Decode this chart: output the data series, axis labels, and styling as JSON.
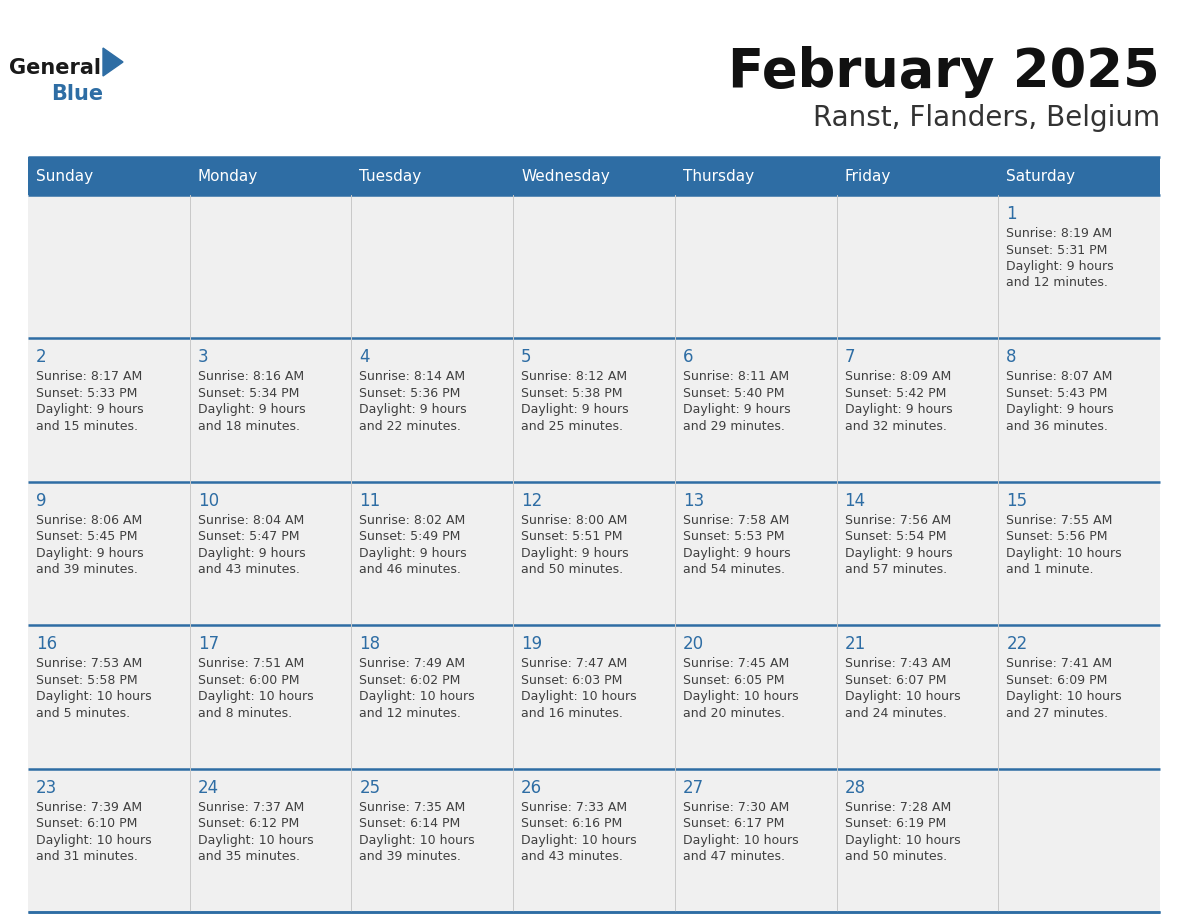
{
  "title": "February 2025",
  "subtitle": "Ranst, Flanders, Belgium",
  "header_bg": "#2E6DA4",
  "header_text": "#FFFFFF",
  "cell_bg": "#F0F0F0",
  "day_number_color": "#2E6DA4",
  "text_color": "#404040",
  "line_color": "#2E6DA4",
  "days_of_week": [
    "Sunday",
    "Monday",
    "Tuesday",
    "Wednesday",
    "Thursday",
    "Friday",
    "Saturday"
  ],
  "logo_general_color": "#1a1a1a",
  "logo_blue_color": "#2E6DA4",
  "logo_triangle_color": "#2E6DA4",
  "weeks": [
    [
      {
        "day": null,
        "sunrise": null,
        "sunset": null,
        "daylight_line1": null,
        "daylight_line2": null
      },
      {
        "day": null,
        "sunrise": null,
        "sunset": null,
        "daylight_line1": null,
        "daylight_line2": null
      },
      {
        "day": null,
        "sunrise": null,
        "sunset": null,
        "daylight_line1": null,
        "daylight_line2": null
      },
      {
        "day": null,
        "sunrise": null,
        "sunset": null,
        "daylight_line1": null,
        "daylight_line2": null
      },
      {
        "day": null,
        "sunrise": null,
        "sunset": null,
        "daylight_line1": null,
        "daylight_line2": null
      },
      {
        "day": null,
        "sunrise": null,
        "sunset": null,
        "daylight_line1": null,
        "daylight_line2": null
      },
      {
        "day": "1",
        "sunrise": "Sunrise: 8:19 AM",
        "sunset": "Sunset: 5:31 PM",
        "daylight_line1": "Daylight: 9 hours",
        "daylight_line2": "and 12 minutes."
      }
    ],
    [
      {
        "day": "2",
        "sunrise": "Sunrise: 8:17 AM",
        "sunset": "Sunset: 5:33 PM",
        "daylight_line1": "Daylight: 9 hours",
        "daylight_line2": "and 15 minutes."
      },
      {
        "day": "3",
        "sunrise": "Sunrise: 8:16 AM",
        "sunset": "Sunset: 5:34 PM",
        "daylight_line1": "Daylight: 9 hours",
        "daylight_line2": "and 18 minutes."
      },
      {
        "day": "4",
        "sunrise": "Sunrise: 8:14 AM",
        "sunset": "Sunset: 5:36 PM",
        "daylight_line1": "Daylight: 9 hours",
        "daylight_line2": "and 22 minutes."
      },
      {
        "day": "5",
        "sunrise": "Sunrise: 8:12 AM",
        "sunset": "Sunset: 5:38 PM",
        "daylight_line1": "Daylight: 9 hours",
        "daylight_line2": "and 25 minutes."
      },
      {
        "day": "6",
        "sunrise": "Sunrise: 8:11 AM",
        "sunset": "Sunset: 5:40 PM",
        "daylight_line1": "Daylight: 9 hours",
        "daylight_line2": "and 29 minutes."
      },
      {
        "day": "7",
        "sunrise": "Sunrise: 8:09 AM",
        "sunset": "Sunset: 5:42 PM",
        "daylight_line1": "Daylight: 9 hours",
        "daylight_line2": "and 32 minutes."
      },
      {
        "day": "8",
        "sunrise": "Sunrise: 8:07 AM",
        "sunset": "Sunset: 5:43 PM",
        "daylight_line1": "Daylight: 9 hours",
        "daylight_line2": "and 36 minutes."
      }
    ],
    [
      {
        "day": "9",
        "sunrise": "Sunrise: 8:06 AM",
        "sunset": "Sunset: 5:45 PM",
        "daylight_line1": "Daylight: 9 hours",
        "daylight_line2": "and 39 minutes."
      },
      {
        "day": "10",
        "sunrise": "Sunrise: 8:04 AM",
        "sunset": "Sunset: 5:47 PM",
        "daylight_line1": "Daylight: 9 hours",
        "daylight_line2": "and 43 minutes."
      },
      {
        "day": "11",
        "sunrise": "Sunrise: 8:02 AM",
        "sunset": "Sunset: 5:49 PM",
        "daylight_line1": "Daylight: 9 hours",
        "daylight_line2": "and 46 minutes."
      },
      {
        "day": "12",
        "sunrise": "Sunrise: 8:00 AM",
        "sunset": "Sunset: 5:51 PM",
        "daylight_line1": "Daylight: 9 hours",
        "daylight_line2": "and 50 minutes."
      },
      {
        "day": "13",
        "sunrise": "Sunrise: 7:58 AM",
        "sunset": "Sunset: 5:53 PM",
        "daylight_line1": "Daylight: 9 hours",
        "daylight_line2": "and 54 minutes."
      },
      {
        "day": "14",
        "sunrise": "Sunrise: 7:56 AM",
        "sunset": "Sunset: 5:54 PM",
        "daylight_line1": "Daylight: 9 hours",
        "daylight_line2": "and 57 minutes."
      },
      {
        "day": "15",
        "sunrise": "Sunrise: 7:55 AM",
        "sunset": "Sunset: 5:56 PM",
        "daylight_line1": "Daylight: 10 hours",
        "daylight_line2": "and 1 minute."
      }
    ],
    [
      {
        "day": "16",
        "sunrise": "Sunrise: 7:53 AM",
        "sunset": "Sunset: 5:58 PM",
        "daylight_line1": "Daylight: 10 hours",
        "daylight_line2": "and 5 minutes."
      },
      {
        "day": "17",
        "sunrise": "Sunrise: 7:51 AM",
        "sunset": "Sunset: 6:00 PM",
        "daylight_line1": "Daylight: 10 hours",
        "daylight_line2": "and 8 minutes."
      },
      {
        "day": "18",
        "sunrise": "Sunrise: 7:49 AM",
        "sunset": "Sunset: 6:02 PM",
        "daylight_line1": "Daylight: 10 hours",
        "daylight_line2": "and 12 minutes."
      },
      {
        "day": "19",
        "sunrise": "Sunrise: 7:47 AM",
        "sunset": "Sunset: 6:03 PM",
        "daylight_line1": "Daylight: 10 hours",
        "daylight_line2": "and 16 minutes."
      },
      {
        "day": "20",
        "sunrise": "Sunrise: 7:45 AM",
        "sunset": "Sunset: 6:05 PM",
        "daylight_line1": "Daylight: 10 hours",
        "daylight_line2": "and 20 minutes."
      },
      {
        "day": "21",
        "sunrise": "Sunrise: 7:43 AM",
        "sunset": "Sunset: 6:07 PM",
        "daylight_line1": "Daylight: 10 hours",
        "daylight_line2": "and 24 minutes."
      },
      {
        "day": "22",
        "sunrise": "Sunrise: 7:41 AM",
        "sunset": "Sunset: 6:09 PM",
        "daylight_line1": "Daylight: 10 hours",
        "daylight_line2": "and 27 minutes."
      }
    ],
    [
      {
        "day": "23",
        "sunrise": "Sunrise: 7:39 AM",
        "sunset": "Sunset: 6:10 PM",
        "daylight_line1": "Daylight: 10 hours",
        "daylight_line2": "and 31 minutes."
      },
      {
        "day": "24",
        "sunrise": "Sunrise: 7:37 AM",
        "sunset": "Sunset: 6:12 PM",
        "daylight_line1": "Daylight: 10 hours",
        "daylight_line2": "and 35 minutes."
      },
      {
        "day": "25",
        "sunrise": "Sunrise: 7:35 AM",
        "sunset": "Sunset: 6:14 PM",
        "daylight_line1": "Daylight: 10 hours",
        "daylight_line2": "and 39 minutes."
      },
      {
        "day": "26",
        "sunrise": "Sunrise: 7:33 AM",
        "sunset": "Sunset: 6:16 PM",
        "daylight_line1": "Daylight: 10 hours",
        "daylight_line2": "and 43 minutes."
      },
      {
        "day": "27",
        "sunrise": "Sunrise: 7:30 AM",
        "sunset": "Sunset: 6:17 PM",
        "daylight_line1": "Daylight: 10 hours",
        "daylight_line2": "and 47 minutes."
      },
      {
        "day": "28",
        "sunrise": "Sunrise: 7:28 AM",
        "sunset": "Sunset: 6:19 PM",
        "daylight_line1": "Daylight: 10 hours",
        "daylight_line2": "and 50 minutes."
      },
      {
        "day": null,
        "sunrise": null,
        "sunset": null,
        "daylight_line1": null,
        "daylight_line2": null
      }
    ]
  ],
  "figsize": [
    11.88,
    9.18
  ],
  "dpi": 100
}
